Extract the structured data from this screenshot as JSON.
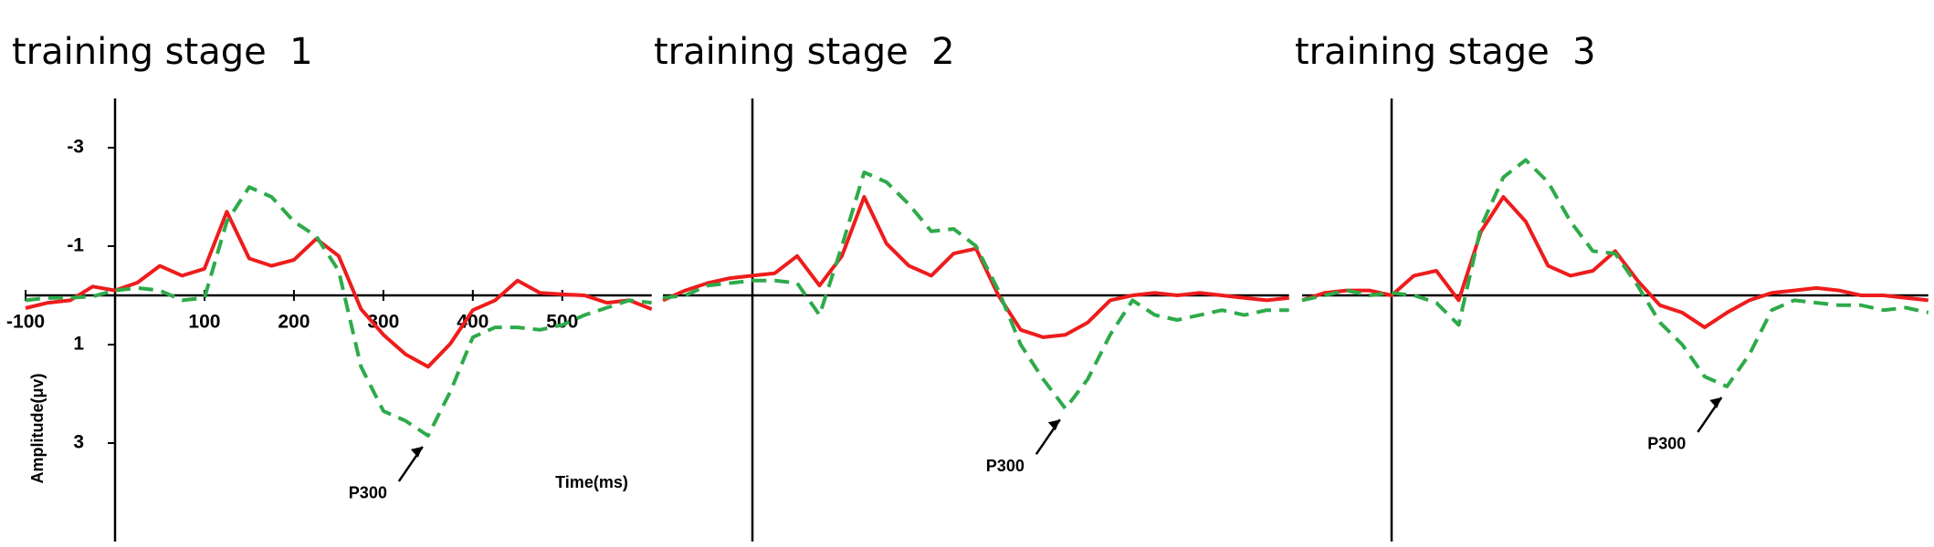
{
  "chart_data": [
    {
      "type": "line",
      "title": "training stage  1",
      "xlabel": "Time(ms)",
      "ylabel": "Amplitude(μv)",
      "annotation": "P300",
      "x": [
        -100,
        -75,
        -50,
        -25,
        0,
        25,
        50,
        75,
        100,
        125,
        150,
        175,
        200,
        225,
        250,
        275,
        300,
        325,
        350,
        375,
        400,
        425,
        450,
        475,
        500,
        525,
        550,
        575,
        600
      ],
      "xlim": [
        -100,
        600
      ],
      "ylim": [
        -4,
        5
      ],
      "y_inverted": true,
      "xticks": [
        -100,
        100,
        200,
        300,
        400,
        500
      ],
      "yticks": [
        -3,
        -1,
        1,
        3
      ],
      "series": [
        {
          "color": "#ee1c1c",
          "style": "solid",
          "values": [
            0.26,
            0.15,
            0.1,
            -0.18,
            -0.1,
            -0.26,
            -0.6,
            -0.4,
            -0.54,
            -1.7,
            -0.75,
            -0.6,
            -0.72,
            -1.15,
            -0.8,
            0.28,
            0.8,
            1.2,
            1.45,
            0.98,
            0.3,
            0.1,
            -0.3,
            -0.05,
            -0.02,
            0,
            0.15,
            0.1,
            0.28
          ]
        },
        {
          "color": "#2eaa4a",
          "style": "dashed",
          "values": [
            0.1,
            0.05,
            0.05,
            0.02,
            -0.1,
            -0.15,
            -0.1,
            0.1,
            0.05,
            -1.5,
            -2.2,
            -2.0,
            -1.5,
            -1.2,
            -0.5,
            1.45,
            2.35,
            2.55,
            2.85,
            1.95,
            0.85,
            0.65,
            0.65,
            0.7,
            0.6,
            0.4,
            0.25,
            0.1,
            0.15
          ]
        }
      ]
    },
    {
      "type": "line",
      "title": "training stage  2",
      "annotation": "P300",
      "x": [
        -100,
        -75,
        -50,
        -25,
        0,
        25,
        50,
        75,
        100,
        125,
        150,
        175,
        200,
        225,
        250,
        275,
        300,
        325,
        350,
        375,
        400,
        425,
        450,
        475,
        500,
        525,
        550,
        575,
        600
      ],
      "xlim": [
        -100,
        600
      ],
      "ylim": [
        -4,
        5
      ],
      "y_inverted": true,
      "series": [
        {
          "color": "#ee1c1c",
          "style": "solid",
          "values": [
            0.1,
            -0.1,
            -0.25,
            -0.35,
            -0.4,
            -0.45,
            -0.8,
            -0.2,
            -0.8,
            -2.0,
            -1.05,
            -0.6,
            -0.4,
            -0.85,
            -0.95,
            0.0,
            0.7,
            0.85,
            0.8,
            0.55,
            0.1,
            0.0,
            -0.05,
            0.0,
            -0.05,
            0.0,
            0.05,
            0.1,
            0.05
          ]
        },
        {
          "color": "#2eaa4a",
          "style": "dashed",
          "values": [
            0.05,
            0.0,
            -0.2,
            -0.25,
            -0.3,
            -0.3,
            -0.25,
            0.4,
            -1.0,
            -2.5,
            -2.3,
            -1.85,
            -1.3,
            -1.35,
            -1.0,
            -0.1,
            1.0,
            1.7,
            2.3,
            1.7,
            0.8,
            0.1,
            0.4,
            0.5,
            0.4,
            0.3,
            0.4,
            0.3,
            0.3
          ]
        }
      ]
    },
    {
      "type": "line",
      "title": "training stage  3",
      "annotation": "P300",
      "x": [
        -100,
        -75,
        -50,
        -25,
        0,
        25,
        50,
        75,
        100,
        125,
        150,
        175,
        200,
        225,
        250,
        275,
        300,
        325,
        350,
        375,
        400,
        425,
        450,
        475,
        500,
        525,
        550,
        575,
        600
      ],
      "xlim": [
        -100,
        600
      ],
      "ylim": [
        -4,
        5
      ],
      "y_inverted": true,
      "series": [
        {
          "color": "#ee1c1c",
          "style": "solid",
          "values": [
            0.1,
            -0.05,
            -0.1,
            -0.1,
            0.0,
            -0.4,
            -0.5,
            0.1,
            -1.3,
            -2.0,
            -1.5,
            -0.6,
            -0.4,
            -0.5,
            -0.9,
            -0.3,
            0.2,
            0.35,
            0.65,
            0.35,
            0.1,
            -0.05,
            -0.1,
            -0.15,
            -0.1,
            0.0,
            0.0,
            0.05,
            0.1
          ]
        },
        {
          "color": "#2eaa4a",
          "style": "dashed",
          "values": [
            0.1,
            0.0,
            -0.1,
            0.0,
            -0.05,
            0.0,
            0.15,
            0.6,
            -1.4,
            -2.4,
            -2.75,
            -2.3,
            -1.5,
            -0.9,
            -0.85,
            -0.2,
            0.55,
            1.0,
            1.65,
            1.85,
            1.2,
            0.3,
            0.1,
            0.15,
            0.2,
            0.2,
            0.3,
            0.25,
            0.35
          ]
        }
      ]
    }
  ]
}
